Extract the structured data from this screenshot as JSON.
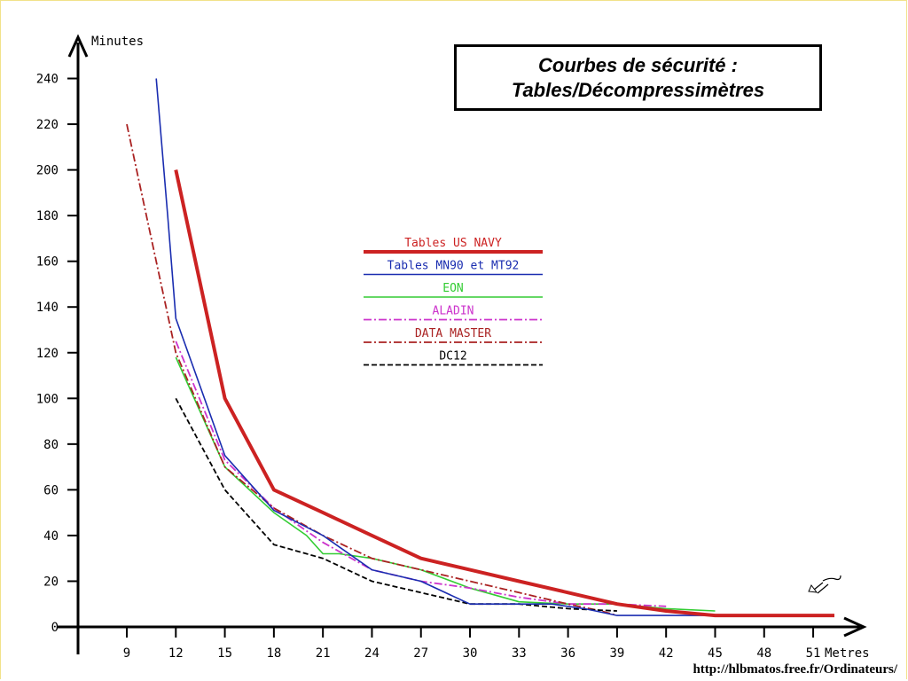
{
  "chart_data": {
    "type": "line",
    "title_line1": "Courbes de sécurité :",
    "title_line2": "Tables/Décompressimètres",
    "ylabel": "Minutes",
    "xlabel": "Metres",
    "xlim": [
      6,
      53
    ],
    "ylim": [
      0,
      250
    ],
    "x_ticks": [
      "9",
      "12",
      "15",
      "18",
      "21",
      "24",
      "27",
      "30",
      "33",
      "36",
      "39",
      "42",
      "45",
      "48",
      "51"
    ],
    "y_ticks": [
      "0",
      "20",
      "40",
      "60",
      "80",
      "100",
      "120",
      "140",
      "160",
      "180",
      "200",
      "220",
      "240"
    ],
    "legend_placement": "center",
    "grid": false,
    "series": [
      {
        "name": "Tables US NAVY",
        "color": "#cc2222",
        "style": "solid-thick",
        "points": [
          [
            12,
            200
          ],
          [
            15,
            100
          ],
          [
            18,
            60
          ],
          [
            21,
            50
          ],
          [
            24,
            40
          ],
          [
            27,
            30
          ],
          [
            30,
            25
          ],
          [
            33,
            20
          ],
          [
            36,
            15
          ],
          [
            39,
            10
          ],
          [
            42,
            7
          ],
          [
            45,
            5
          ],
          [
            48,
            5
          ],
          [
            51,
            5
          ],
          [
            52.3,
            5
          ]
        ]
      },
      {
        "name": "Tables MN90 et MT92",
        "color": "#1a2db0",
        "style": "solid",
        "points": [
          [
            10.8,
            240
          ],
          [
            11.5,
            180
          ],
          [
            12,
            135
          ],
          [
            15,
            75
          ],
          [
            18,
            51
          ],
          [
            21,
            40
          ],
          [
            22,
            35
          ],
          [
            24,
            25
          ],
          [
            27,
            20
          ],
          [
            30,
            10
          ],
          [
            33,
            10
          ],
          [
            35,
            10
          ],
          [
            37,
            8
          ],
          [
            39,
            5
          ],
          [
            42,
            5
          ],
          [
            45,
            5
          ],
          [
            48,
            5
          ]
        ]
      },
      {
        "name": "EON",
        "color": "#33cc33",
        "style": "solid",
        "points": [
          [
            12,
            118
          ],
          [
            15,
            70
          ],
          [
            18,
            50
          ],
          [
            20,
            40
          ],
          [
            21,
            32
          ],
          [
            22,
            32
          ],
          [
            24,
            30
          ],
          [
            27,
            25
          ],
          [
            30,
            17
          ],
          [
            33,
            11
          ],
          [
            36,
            10
          ],
          [
            39,
            10
          ],
          [
            42,
            8
          ],
          [
            45,
            7
          ]
        ]
      },
      {
        "name": "ALADIN",
        "color": "#cc33cc",
        "style": "dashdot",
        "points": [
          [
            12,
            125
          ],
          [
            15,
            73
          ],
          [
            18,
            52
          ],
          [
            21,
            37
          ],
          [
            24,
            25
          ],
          [
            27,
            20
          ],
          [
            30,
            17
          ],
          [
            33,
            13
          ],
          [
            36,
            10
          ],
          [
            39,
            10
          ],
          [
            42,
            9
          ]
        ]
      },
      {
        "name": "DATA MASTER",
        "color": "#aa2222",
        "style": "dashdot",
        "points": [
          [
            9,
            220
          ],
          [
            12,
            120
          ],
          [
            15,
            70
          ],
          [
            18,
            52
          ],
          [
            21,
            40
          ],
          [
            24,
            30
          ],
          [
            27,
            25
          ],
          [
            30,
            20
          ],
          [
            33,
            15
          ],
          [
            36,
            10
          ],
          [
            38,
            7
          ],
          [
            39,
            5
          ]
        ]
      },
      {
        "name": "DC12",
        "color": "#000000",
        "style": "dashed",
        "points": [
          [
            12,
            100
          ],
          [
            15,
            60
          ],
          [
            18,
            36
          ],
          [
            21,
            30
          ],
          [
            24,
            20
          ],
          [
            27,
            15
          ],
          [
            30,
            10
          ],
          [
            33,
            10
          ],
          [
            36,
            8
          ],
          [
            39,
            7
          ]
        ]
      }
    ],
    "source": "http://hlbmatos.free.fr/Ordinateurs/"
  }
}
